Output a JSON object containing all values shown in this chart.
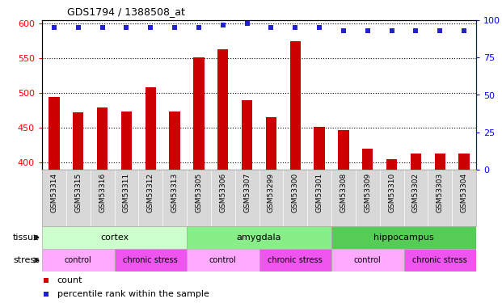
{
  "title": "GDS1794 / 1388508_at",
  "samples": [
    "GSM53314",
    "GSM53315",
    "GSM53316",
    "GSM53311",
    "GSM53312",
    "GSM53313",
    "GSM53305",
    "GSM53306",
    "GSM53307",
    "GSM53299",
    "GSM53300",
    "GSM53301",
    "GSM53308",
    "GSM53309",
    "GSM53310",
    "GSM53302",
    "GSM53303",
    "GSM53304"
  ],
  "counts": [
    495,
    472,
    480,
    474,
    508,
    474,
    551,
    563,
    490,
    465,
    575,
    452,
    447,
    420,
    405,
    413,
    413,
    413
  ],
  "percentiles": [
    95,
    95,
    95,
    95,
    95,
    95,
    95,
    97,
    98,
    95,
    95,
    95,
    93,
    93,
    93,
    93,
    93,
    93
  ],
  "ylim_left": [
    390,
    605
  ],
  "ylim_right": [
    0,
    100
  ],
  "yticks_left": [
    400,
    450,
    500,
    550,
    600
  ],
  "yticks_right": [
    0,
    25,
    50,
    75,
    100
  ],
  "bar_color": "#cc0000",
  "dot_color": "#2222cc",
  "tissue_groups": [
    {
      "label": "cortex",
      "start": 0,
      "end": 6,
      "color": "#ccffcc"
    },
    {
      "label": "amygdala",
      "start": 6,
      "end": 12,
      "color": "#88ee88"
    },
    {
      "label": "hippocampus",
      "start": 12,
      "end": 18,
      "color": "#55cc55"
    }
  ],
  "stress_groups": [
    {
      "label": "control",
      "start": 0,
      "end": 3,
      "color": "#ffaaff"
    },
    {
      "label": "chronic stress",
      "start": 3,
      "end": 6,
      "color": "#ee55ee"
    },
    {
      "label": "control",
      "start": 6,
      "end": 9,
      "color": "#ffaaff"
    },
    {
      "label": "chronic stress",
      "start": 9,
      "end": 12,
      "color": "#ee55ee"
    },
    {
      "label": "control",
      "start": 12,
      "end": 15,
      "color": "#ffaaff"
    },
    {
      "label": "chronic stress",
      "start": 15,
      "end": 18,
      "color": "#ee55ee"
    }
  ],
  "tissue_colors": [
    "#ccffcc",
    "#88ee88",
    "#55cc55"
  ],
  "stress_colors": [
    "#ffaaff",
    "#ee55ee",
    "#ffaaff",
    "#ee55ee",
    "#ffaaff",
    "#ee55ee"
  ],
  "legend_count_color": "#cc0000",
  "legend_dot_color": "#2222cc",
  "xlabels_bg": "#d8d8d8",
  "plot_bg": "#ffffff",
  "fig_bg": "#ffffff"
}
